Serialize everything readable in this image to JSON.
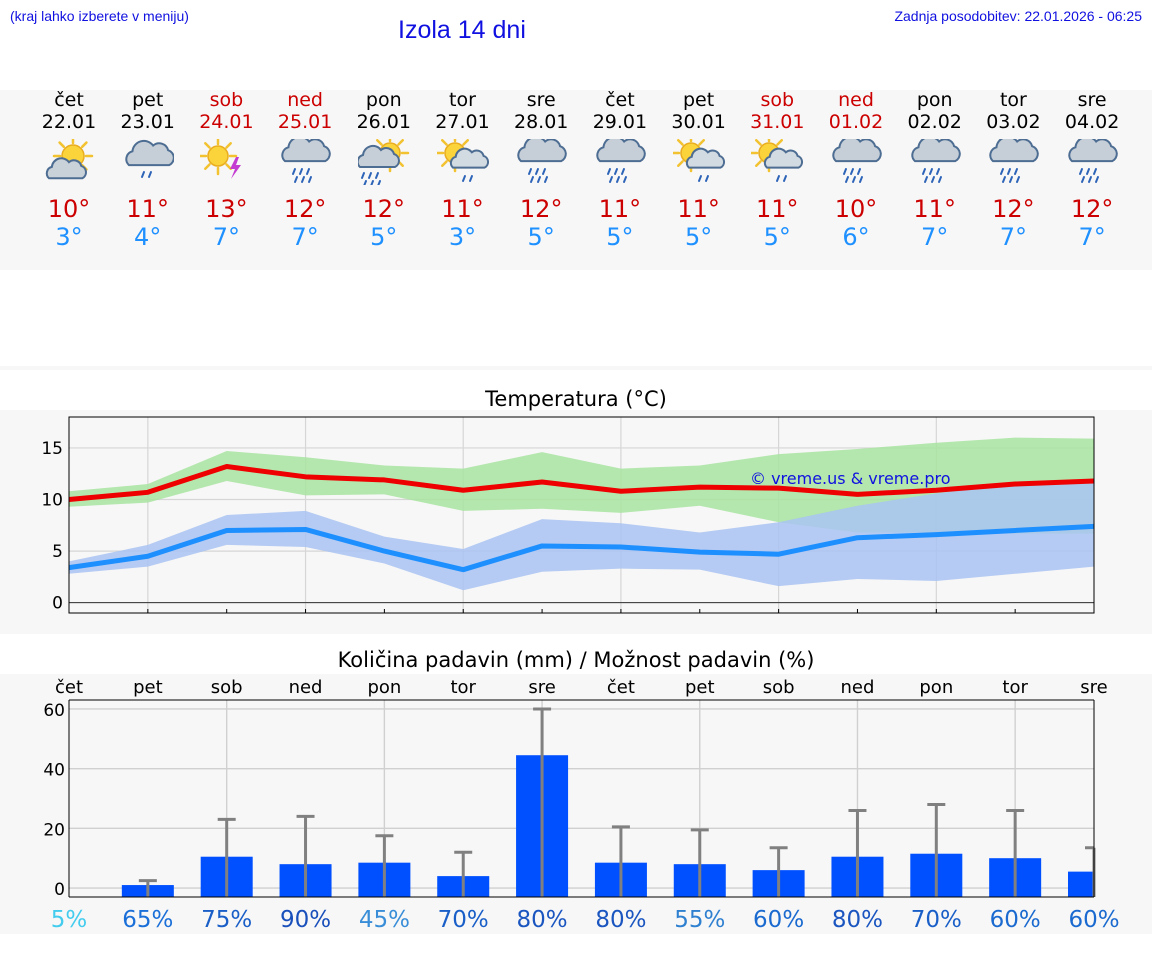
{
  "header": {
    "hint": "(kraj lahko izberete v meniju)",
    "title": "Izola 14 dni",
    "updated": "Zadnja posodobitev: 22.01.2026 - 06:25"
  },
  "forecast": [
    {
      "day": "čet",
      "date": "22.01",
      "weekend": false,
      "icon": "partly-cloudy-icon",
      "max": "10°",
      "min": "3°"
    },
    {
      "day": "pet",
      "date": "23.01",
      "weekend": false,
      "icon": "rain-cloud-icon",
      "max": "11°",
      "min": "4°"
    },
    {
      "day": "sob",
      "date": "24.01",
      "weekend": true,
      "icon": "sun-thunder-icon",
      "max": "13°",
      "min": "7°"
    },
    {
      "day": "ned",
      "date": "25.01",
      "weekend": true,
      "icon": "heavy-rain-cloud-icon",
      "max": "12°",
      "min": "7°"
    },
    {
      "day": "pon",
      "date": "26.01",
      "weekend": false,
      "icon": "sun-heavy-rain-icon",
      "max": "12°",
      "min": "5°"
    },
    {
      "day": "tor",
      "date": "27.01",
      "weekend": false,
      "icon": "sun-cloud-rain-icon",
      "max": "11°",
      "min": "3°"
    },
    {
      "day": "sre",
      "date": "28.01",
      "weekend": false,
      "icon": "heavy-rain-cloud-icon",
      "max": "12°",
      "min": "5°"
    },
    {
      "day": "čet",
      "date": "29.01",
      "weekend": false,
      "icon": "heavy-rain-cloud-icon",
      "max": "11°",
      "min": "5°"
    },
    {
      "day": "pet",
      "date": "30.01",
      "weekend": false,
      "icon": "sun-cloud-rain-icon",
      "max": "11°",
      "min": "5°"
    },
    {
      "day": "sob",
      "date": "31.01",
      "weekend": true,
      "icon": "sun-cloud-rain-icon",
      "max": "11°",
      "min": "5°"
    },
    {
      "day": "ned",
      "date": "01.02",
      "weekend": true,
      "icon": "heavy-rain-cloud-icon",
      "max": "10°",
      "min": "6°"
    },
    {
      "day": "pon",
      "date": "02.02",
      "weekend": false,
      "icon": "heavy-rain-cloud-icon",
      "max": "11°",
      "min": "7°"
    },
    {
      "day": "tor",
      "date": "03.02",
      "weekend": false,
      "icon": "heavy-rain-cloud-icon",
      "max": "12°",
      "min": "7°"
    },
    {
      "day": "sre",
      "date": "04.02",
      "weekend": false,
      "icon": "heavy-rain-cloud-icon",
      "max": "12°",
      "min": "7°"
    }
  ],
  "colors": {
    "max_line": "#ee0000",
    "min_line": "#1e8fff",
    "max_band": "#a8e4a0",
    "min_band": "#a9c3f2",
    "overlap_band": "#7cc4a8",
    "bar": "#0050ff",
    "error_bar": "#808080",
    "weekend": "#cc0000"
  },
  "chart_data": [
    {
      "type": "line",
      "title": "Temperatura (°C)",
      "watermark": "© vreme.us & vreme.pro",
      "ylim": [
        -1,
        18
      ],
      "yticks": [
        0,
        5,
        10,
        15
      ],
      "x": [
        0,
        1,
        2,
        3,
        4,
        5,
        6,
        7,
        8,
        9,
        10,
        11,
        12,
        13
      ],
      "series": [
        {
          "name": "max",
          "values": [
            10,
            10.7,
            13.2,
            12.2,
            11.9,
            10.9,
            11.7,
            10.8,
            11.2,
            11.1,
            10.5,
            10.9,
            11.5,
            11.8
          ],
          "band_low": [
            9.3,
            9.7,
            11.8,
            10.4,
            10.5,
            8.9,
            9.1,
            8.7,
            9.4,
            7.8,
            6.8,
            6.8,
            6.7,
            6.7
          ],
          "band_high": [
            10.8,
            11.5,
            14.7,
            14.1,
            13.3,
            13.0,
            14.6,
            13.0,
            13.3,
            14.4,
            14.9,
            15.5,
            16.0,
            15.9
          ]
        },
        {
          "name": "min",
          "values": [
            3.4,
            4.5,
            7.0,
            7.1,
            5.0,
            3.2,
            5.5,
            5.4,
            4.9,
            4.7,
            6.3,
            6.6,
            7.0,
            7.4
          ],
          "band_low": [
            2.8,
            3.5,
            5.6,
            5.4,
            3.8,
            1.2,
            3.0,
            3.3,
            3.2,
            1.6,
            2.3,
            2.1,
            2.8,
            3.5
          ],
          "band_high": [
            4.0,
            5.6,
            8.5,
            8.9,
            6.4,
            5.2,
            8.1,
            7.7,
            6.8,
            7.8,
            9.4,
            10.6,
            11.5,
            11.9
          ]
        }
      ]
    },
    {
      "type": "bar",
      "title": "Količina padavin (mm) / Možnost padavin (%)",
      "categories": [
        "čet",
        "pet",
        "sob",
        "ned",
        "pon",
        "tor",
        "sre",
        "čet",
        "pet",
        "sob",
        "ned",
        "pon",
        "tor",
        "sre"
      ],
      "ylim": [
        -3,
        63
      ],
      "yticks": [
        0,
        20,
        40,
        60
      ],
      "values": [
        0,
        1.0,
        10.5,
        8.0,
        8.5,
        4.0,
        44.5,
        8.5,
        8.0,
        6.0,
        10.5,
        11.5,
        10.0,
        5.5
      ],
      "error_high": [
        0,
        2.5,
        23,
        24,
        17.5,
        12,
        60,
        20.5,
        19.5,
        13.5,
        26,
        28,
        26,
        13.5
      ],
      "probabilities": [
        "5%",
        "65%",
        "75%",
        "90%",
        "45%",
        "70%",
        "80%",
        "80%",
        "55%",
        "60%",
        "80%",
        "70%",
        "60%",
        "60%"
      ],
      "probability_colors": [
        "#44ccee",
        "#1a6fd8",
        "#1a5fc8",
        "#1a50bb",
        "#3a8ed8",
        "#1a5fc8",
        "#1a55c0",
        "#1a55c0",
        "#2f80d0",
        "#1a6ad0",
        "#1a55c0",
        "#1a5fc8",
        "#1a6ad0",
        "#1a6ad0"
      ]
    }
  ]
}
